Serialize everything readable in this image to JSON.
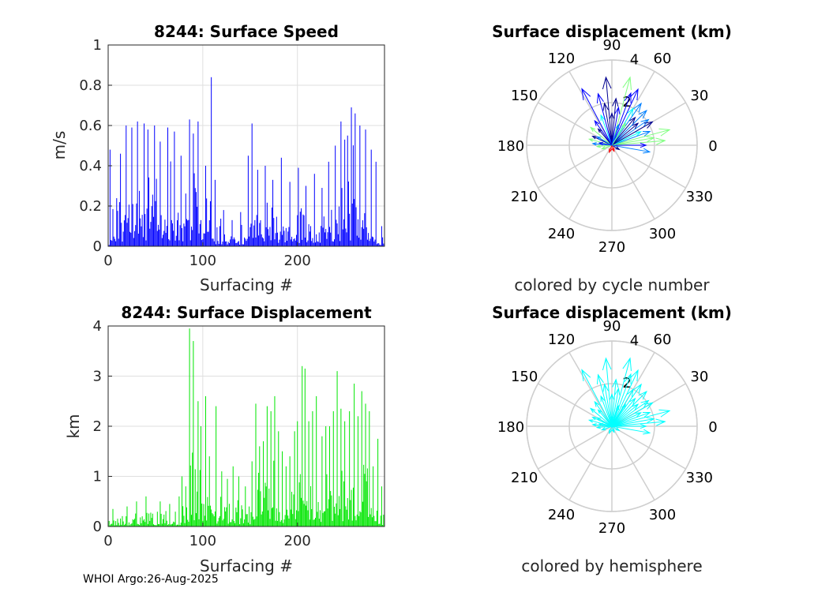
{
  "footer": "WHOI Argo:26-Aug-2025",
  "chart_data": [
    {
      "type": "bar",
      "title": "8244: Surface Speed",
      "xlabel": "Surfacing #",
      "ylabel": "m/s",
      "xlim": [
        0,
        292
      ],
      "ylim": [
        0,
        1
      ],
      "xticks": [
        0,
        100,
        200
      ],
      "yticks": [
        0,
        0.2,
        0.4,
        0.6,
        0.8,
        1
      ],
      "ytick_labels": [
        "0",
        "0.2",
        "0.4",
        "0.6",
        "0.8",
        "1"
      ],
      "grid": true,
      "color": "#0000ff",
      "peaks": [
        {
          "x": 2,
          "y": 0.48
        },
        {
          "x": 13,
          "y": 0.46
        },
        {
          "x": 19,
          "y": 0.6
        },
        {
          "x": 25,
          "y": 0.59
        },
        {
          "x": 31,
          "y": 0.62
        },
        {
          "x": 38,
          "y": 0.61
        },
        {
          "x": 42,
          "y": 0.58
        },
        {
          "x": 49,
          "y": 0.6
        },
        {
          "x": 55,
          "y": 0.52
        },
        {
          "x": 63,
          "y": 0.59
        },
        {
          "x": 70,
          "y": 0.57
        },
        {
          "x": 77,
          "y": 0.45
        },
        {
          "x": 86,
          "y": 0.63
        },
        {
          "x": 90,
          "y": 0.56
        },
        {
          "x": 95,
          "y": 0.62
        },
        {
          "x": 103,
          "y": 0.4
        },
        {
          "x": 109,
          "y": 0.84
        },
        {
          "x": 113,
          "y": 0.33
        },
        {
          "x": 122,
          "y": 0.18
        },
        {
          "x": 131,
          "y": 0.13
        },
        {
          "x": 140,
          "y": 0.17
        },
        {
          "x": 148,
          "y": 0.45
        },
        {
          "x": 152,
          "y": 0.61
        },
        {
          "x": 158,
          "y": 0.38
        },
        {
          "x": 166,
          "y": 0.4
        },
        {
          "x": 174,
          "y": 0.33
        },
        {
          "x": 183,
          "y": 0.44
        },
        {
          "x": 192,
          "y": 0.32
        },
        {
          "x": 201,
          "y": 0.39
        },
        {
          "x": 209,
          "y": 0.3
        },
        {
          "x": 218,
          "y": 0.36
        },
        {
          "x": 226,
          "y": 0.29
        },
        {
          "x": 233,
          "y": 0.42
        },
        {
          "x": 240,
          "y": 0.5
        },
        {
          "x": 246,
          "y": 0.62
        },
        {
          "x": 250,
          "y": 0.53
        },
        {
          "x": 253,
          "y": 0.55
        },
        {
          "x": 257,
          "y": 0.69
        },
        {
          "x": 261,
          "y": 0.66
        },
        {
          "x": 266,
          "y": 0.6
        },
        {
          "x": 272,
          "y": 0.58
        },
        {
          "x": 278,
          "y": 0.48
        },
        {
          "x": 283,
          "y": 0.42
        },
        {
          "x": 289,
          "y": 0.1
        }
      ]
    },
    {
      "type": "bar",
      "title": "8244: Surface Displacement",
      "xlabel": "Surfacing #",
      "ylabel": "km",
      "xlim": [
        0,
        292
      ],
      "ylim": [
        0,
        4
      ],
      "xticks": [
        0,
        100,
        200
      ],
      "yticks": [
        0,
        1,
        2,
        3,
        4
      ],
      "ytick_labels": [
        "0",
        "1",
        "2",
        "3",
        "4"
      ],
      "grid": true,
      "color": "#00e600",
      "peaks": [
        {
          "x": 5,
          "y": 0.35
        },
        {
          "x": 20,
          "y": 0.4
        },
        {
          "x": 30,
          "y": 0.5
        },
        {
          "x": 40,
          "y": 0.6
        },
        {
          "x": 55,
          "y": 0.5
        },
        {
          "x": 65,
          "y": 0.45
        },
        {
          "x": 75,
          "y": 0.6
        },
        {
          "x": 78,
          "y": 1.0
        },
        {
          "x": 82,
          "y": 0.8
        },
        {
          "x": 86,
          "y": 3.95
        },
        {
          "x": 90,
          "y": 3.7
        },
        {
          "x": 95,
          "y": 2.5
        },
        {
          "x": 98,
          "y": 2.0
        },
        {
          "x": 103,
          "y": 2.6
        },
        {
          "x": 107,
          "y": 1.4
        },
        {
          "x": 114,
          "y": 2.4
        },
        {
          "x": 120,
          "y": 1.1
        },
        {
          "x": 126,
          "y": 0.95
        },
        {
          "x": 132,
          "y": 1.2
        },
        {
          "x": 138,
          "y": 1.0
        },
        {
          "x": 145,
          "y": 0.8
        },
        {
          "x": 152,
          "y": 1.3
        },
        {
          "x": 156,
          "y": 2.45
        },
        {
          "x": 160,
          "y": 1.6
        },
        {
          "x": 164,
          "y": 1.7
        },
        {
          "x": 168,
          "y": 2.4
        },
        {
          "x": 172,
          "y": 2.3
        },
        {
          "x": 176,
          "y": 2.6
        },
        {
          "x": 180,
          "y": 1.9
        },
        {
          "x": 184,
          "y": 1.5
        },
        {
          "x": 188,
          "y": 1.2
        },
        {
          "x": 192,
          "y": 1.4
        },
        {
          "x": 197,
          "y": 1.9
        },
        {
          "x": 200,
          "y": 2.1
        },
        {
          "x": 205,
          "y": 3.2
        },
        {
          "x": 208,
          "y": 3.15
        },
        {
          "x": 212,
          "y": 2.1
        },
        {
          "x": 216,
          "y": 2.3
        },
        {
          "x": 220,
          "y": 2.6
        },
        {
          "x": 226,
          "y": 1.8
        },
        {
          "x": 230,
          "y": 2.0
        },
        {
          "x": 234,
          "y": 2.0
        },
        {
          "x": 238,
          "y": 2.3
        },
        {
          "x": 242,
          "y": 3.1
        },
        {
          "x": 246,
          "y": 2.35
        },
        {
          "x": 250,
          "y": 2.1
        },
        {
          "x": 255,
          "y": 2.3
        },
        {
          "x": 260,
          "y": 2.85
        },
        {
          "x": 264,
          "y": 2.2
        },
        {
          "x": 268,
          "y": 2.7
        },
        {
          "x": 272,
          "y": 2.45
        },
        {
          "x": 276,
          "y": 2.3
        },
        {
          "x": 280,
          "y": 1.2
        },
        {
          "x": 285,
          "y": 1.75
        },
        {
          "x": 289,
          "y": 0.8
        }
      ]
    },
    {
      "type": "polar-compass",
      "title": "Surface displacement (km)",
      "caption": "colored by cycle number",
      "rlim": [
        0,
        4
      ],
      "r_ticks": [
        2,
        4
      ],
      "r_tick_labels": [
        "2",
        "4"
      ],
      "angle_ticks": [
        0,
        30,
        60,
        90,
        120,
        150,
        180,
        210,
        240,
        270,
        300,
        330
      ],
      "angle_tick_labels": [
        "0",
        "30",
        "60",
        "90",
        "120",
        "150",
        "180",
        "210",
        "240",
        "270",
        "300",
        "330"
      ],
      "colormap": [
        "#00008f",
        "#0000ff",
        "#0080ff",
        "#00ffff",
        "#80ff80",
        "#ffff00",
        "#ff8000",
        "#ff0000"
      ],
      "arrows": [
        {
          "theta": 95,
          "r": 3.2,
          "c": 0.1
        },
        {
          "theta": 118,
          "r": 3.0,
          "c": 0.15
        },
        {
          "theta": 75,
          "r": 3.3,
          "c": 0.6
        },
        {
          "theta": 65,
          "r": 2.9,
          "c": 0.2
        },
        {
          "theta": 15,
          "r": 2.8,
          "c": 0.62
        },
        {
          "theta": 5,
          "r": 2.5,
          "c": 0.5
        },
        {
          "theta": 35,
          "r": 2.1,
          "c": 0.3
        },
        {
          "theta": 45,
          "r": 2.3,
          "c": 0.35
        },
        {
          "theta": 55,
          "r": 2.4,
          "c": 0.28
        },
        {
          "theta": 70,
          "r": 2.6,
          "c": 0.15
        },
        {
          "theta": 85,
          "r": 2.2,
          "c": 0.05
        },
        {
          "theta": 100,
          "r": 2.0,
          "c": 0.1
        },
        {
          "theta": 110,
          "r": 1.5,
          "c": 0.4
        },
        {
          "theta": 125,
          "r": 1.4,
          "c": 0.2
        },
        {
          "theta": 140,
          "r": 1.3,
          "c": 0.5
        },
        {
          "theta": 155,
          "r": 1.0,
          "c": 0.1
        },
        {
          "theta": 165,
          "r": 1.1,
          "c": 0.55
        },
        {
          "theta": 175,
          "r": 0.9,
          "c": 0.3
        },
        {
          "theta": 185,
          "r": 0.7,
          "c": 0.6
        },
        {
          "theta": 200,
          "r": 0.5,
          "c": 0.55
        },
        {
          "theta": 250,
          "r": 0.35,
          "c": 0.9
        },
        {
          "theta": 290,
          "r": 0.3,
          "c": 0.95
        },
        {
          "theta": 330,
          "r": 0.4,
          "c": 0.1
        },
        {
          "theta": 350,
          "r": 1.8,
          "c": 0.3
        },
        {
          "theta": 0,
          "r": 1.6,
          "c": 0.2
        },
        {
          "theta": 20,
          "r": 1.9,
          "c": 0.25
        },
        {
          "theta": 25,
          "r": 1.5,
          "c": 0.45
        },
        {
          "theta": 40,
          "r": 1.6,
          "c": 0.05
        },
        {
          "theta": 50,
          "r": 1.7,
          "c": 0.12
        },
        {
          "theta": 60,
          "r": 2.0,
          "c": 0.4
        },
        {
          "theta": 80,
          "r": 1.8,
          "c": 0.22
        },
        {
          "theta": 90,
          "r": 1.5,
          "c": 0.08
        },
        {
          "theta": 105,
          "r": 2.5,
          "c": 0.18
        },
        {
          "theta": 130,
          "r": 1.0,
          "c": 0.05
        },
        {
          "theta": 150,
          "r": 0.8,
          "c": 0.35
        },
        {
          "theta": 170,
          "r": 0.6,
          "c": 0.15
        },
        {
          "theta": 10,
          "r": 2.0,
          "c": 0.58
        },
        {
          "theta": 30,
          "r": 2.2,
          "c": 0.1
        },
        {
          "theta": 58,
          "r": 1.2,
          "c": 0.5
        },
        {
          "theta": 72,
          "r": 1.0,
          "c": 0.3
        }
      ]
    },
    {
      "type": "polar-compass",
      "title": "Surface displacement (km)",
      "caption": "colored by hemisphere",
      "rlim": [
        0,
        4
      ],
      "r_ticks": [
        2,
        4
      ],
      "r_tick_labels": [
        "2",
        "4"
      ],
      "angle_ticks": [
        0,
        30,
        60,
        90,
        120,
        150,
        180,
        210,
        240,
        270,
        300,
        330
      ],
      "angle_tick_labels": [
        "0",
        "30",
        "60",
        "90",
        "120",
        "150",
        "180",
        "210",
        "240",
        "270",
        "300",
        "330"
      ],
      "color": "#00ffff",
      "arrows_same_as_previous": true
    }
  ]
}
